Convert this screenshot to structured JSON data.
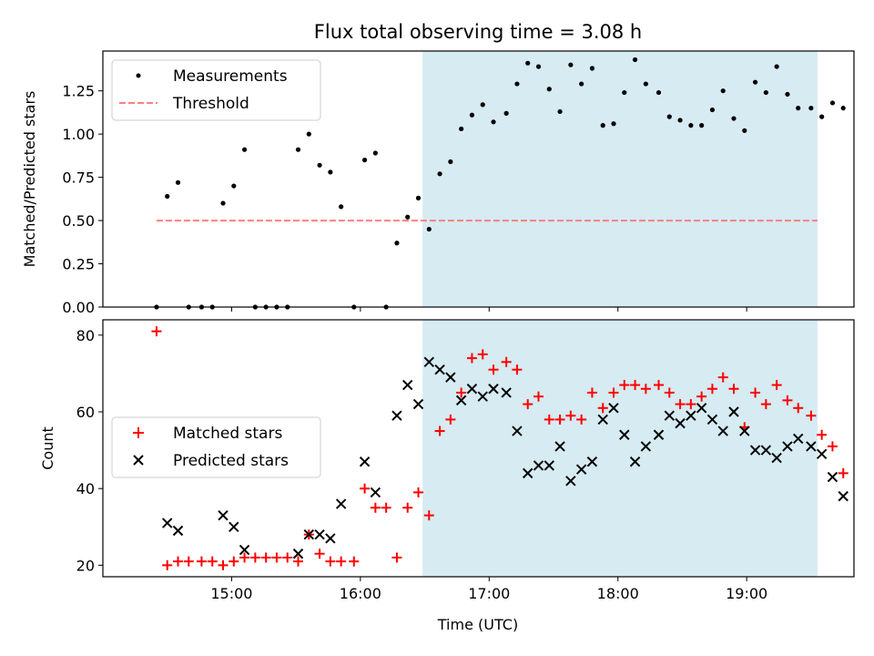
{
  "colors": {
    "shade": "#add8e6",
    "threshold": "#ff7f7f",
    "measurement": "#000000",
    "matched": "#ff0000",
    "predicted": "#000000"
  },
  "chart_data": [
    {
      "type": "scatter",
      "title": "Flux total observing time = 3.08 h",
      "xlabel": "",
      "ylabel": "Matched/Predicted stars",
      "x_unit": "time of day (UTC, HH:MM)",
      "xlim": [
        "14:00",
        "19:50"
      ],
      "ylim": [
        0,
        1.48
      ],
      "yticks": [
        0.0,
        0.25,
        0.5,
        0.75,
        1.0,
        1.25
      ],
      "ytick_labels": [
        "0.00",
        "0.25",
        "0.50",
        "0.75",
        "1.00",
        "1.25"
      ],
      "xtick_labels_shown": false,
      "shaded_span": [
        "16:29",
        "19:33"
      ],
      "legend": {
        "placement": "upper-left",
        "entries": [
          "Measurements",
          "Threshold"
        ]
      },
      "threshold": {
        "name": "Threshold",
        "y": 0.5,
        "x_range": [
          "14:25",
          "19:33"
        ]
      },
      "series": [
        {
          "name": "Measurements",
          "points": [
            [
              "14:25",
              0.0
            ],
            [
              "14:30",
              0.64
            ],
            [
              "14:35",
              0.72
            ],
            [
              "14:40",
              0.0
            ],
            [
              "14:46",
              0.0
            ],
            [
              "14:51",
              0.0
            ],
            [
              "14:56",
              0.6
            ],
            [
              "15:01",
              0.7
            ],
            [
              "15:06",
              0.91
            ],
            [
              "15:11",
              0.0
            ],
            [
              "15:16",
              0.0
            ],
            [
              "15:21",
              0.0
            ],
            [
              "15:26",
              0.0
            ],
            [
              "15:31",
              0.91
            ],
            [
              "15:36",
              1.0
            ],
            [
              "15:41",
              0.82
            ],
            [
              "15:46",
              0.78
            ],
            [
              "15:51",
              0.58
            ],
            [
              "15:57",
              0.0
            ],
            [
              "16:02",
              0.85
            ],
            [
              "16:07",
              0.89
            ],
            [
              "16:12",
              0.0
            ],
            [
              "16:17",
              0.37
            ],
            [
              "16:22",
              0.52
            ],
            [
              "16:27",
              0.63
            ],
            [
              "16:32",
              0.45
            ],
            [
              "16:37",
              0.77
            ],
            [
              "16:42",
              0.84
            ],
            [
              "16:47",
              1.03
            ],
            [
              "16:52",
              1.11
            ],
            [
              "16:57",
              1.17
            ],
            [
              "17:02",
              1.07
            ],
            [
              "17:08",
              1.12
            ],
            [
              "17:13",
              1.29
            ],
            [
              "17:18",
              1.41
            ],
            [
              "17:23",
              1.39
            ],
            [
              "17:28",
              1.26
            ],
            [
              "17:33",
              1.13
            ],
            [
              "17:38",
              1.4
            ],
            [
              "17:43",
              1.29
            ],
            [
              "17:48",
              1.38
            ],
            [
              "17:53",
              1.05
            ],
            [
              "17:58",
              1.06
            ],
            [
              "18:03",
              1.24
            ],
            [
              "18:08",
              1.43
            ],
            [
              "18:13",
              1.29
            ],
            [
              "18:19",
              1.24
            ],
            [
              "18:24",
              1.1
            ],
            [
              "18:29",
              1.08
            ],
            [
              "18:34",
              1.05
            ],
            [
              "18:39",
              1.05
            ],
            [
              "18:44",
              1.14
            ],
            [
              "18:49",
              1.25
            ],
            [
              "18:54",
              1.09
            ],
            [
              "18:59",
              1.02
            ],
            [
              "19:04",
              1.3
            ],
            [
              "19:09",
              1.24
            ],
            [
              "19:14",
              1.39
            ],
            [
              "19:19",
              1.23
            ],
            [
              "19:24",
              1.15
            ],
            [
              "19:30",
              1.15
            ],
            [
              "19:35",
              1.1
            ],
            [
              "19:40",
              1.18
            ],
            [
              "19:45",
              1.15
            ]
          ]
        }
      ]
    },
    {
      "type": "scatter",
      "title": "",
      "xlabel": "Time (UTC)",
      "ylabel": "Count",
      "x_unit": "time of day (UTC, HH:MM)",
      "xlim": [
        "14:00",
        "19:50"
      ],
      "ylim": [
        17,
        84
      ],
      "yticks": [
        20,
        40,
        60,
        80
      ],
      "ytick_labels": [
        "20",
        "40",
        "60",
        "80"
      ],
      "xticks": [
        "15:00",
        "16:00",
        "17:00",
        "18:00",
        "19:00"
      ],
      "xtick_labels": [
        "15:00",
        "16:00",
        "17:00",
        "18:00",
        "19:00"
      ],
      "shaded_span": [
        "16:29",
        "19:33"
      ],
      "legend": {
        "placement": "center-left",
        "entries": [
          "Matched stars",
          "Predicted stars"
        ]
      },
      "series": [
        {
          "name": "Matched stars",
          "marker": "+",
          "points": [
            [
              "14:25",
              81
            ],
            [
              "14:30",
              20
            ],
            [
              "14:35",
              21
            ],
            [
              "14:40",
              21
            ],
            [
              "14:46",
              21
            ],
            [
              "14:51",
              21
            ],
            [
              "14:56",
              20
            ],
            [
              "15:01",
              21
            ],
            [
              "15:06",
              22
            ],
            [
              "15:11",
              22
            ],
            [
              "15:16",
              22
            ],
            [
              "15:21",
              22
            ],
            [
              "15:26",
              22
            ],
            [
              "15:31",
              21
            ],
            [
              "15:36",
              28
            ],
            [
              "15:41",
              23
            ],
            [
              "15:46",
              21
            ],
            [
              "15:51",
              21
            ],
            [
              "15:57",
              21
            ],
            [
              "16:02",
              40
            ],
            [
              "16:07",
              35
            ],
            [
              "16:12",
              35
            ],
            [
              "16:17",
              22
            ],
            [
              "16:22",
              35
            ],
            [
              "16:27",
              39
            ],
            [
              "16:32",
              33
            ],
            [
              "16:37",
              55
            ],
            [
              "16:42",
              58
            ],
            [
              "16:47",
              65
            ],
            [
              "16:52",
              74
            ],
            [
              "16:57",
              75
            ],
            [
              "17:02",
              71
            ],
            [
              "17:08",
              73
            ],
            [
              "17:13",
              71
            ],
            [
              "17:18",
              62
            ],
            [
              "17:23",
              64
            ],
            [
              "17:28",
              58
            ],
            [
              "17:33",
              58
            ],
            [
              "17:38",
              59
            ],
            [
              "17:43",
              58
            ],
            [
              "17:48",
              65
            ],
            [
              "17:53",
              61
            ],
            [
              "17:58",
              65
            ],
            [
              "18:03",
              67
            ],
            [
              "18:08",
              67
            ],
            [
              "18:13",
              66
            ],
            [
              "18:19",
              67
            ],
            [
              "18:24",
              65
            ],
            [
              "18:29",
              62
            ],
            [
              "18:34",
              62
            ],
            [
              "18:39",
              64
            ],
            [
              "18:44",
              66
            ],
            [
              "18:49",
              69
            ],
            [
              "18:54",
              66
            ],
            [
              "18:59",
              56
            ],
            [
              "19:04",
              65
            ],
            [
              "19:09",
              62
            ],
            [
              "19:14",
              67
            ],
            [
              "19:19",
              63
            ],
            [
              "19:24",
              61
            ],
            [
              "19:30",
              59
            ],
            [
              "19:35",
              54
            ],
            [
              "19:40",
              51
            ],
            [
              "19:45",
              44
            ]
          ]
        },
        {
          "name": "Predicted stars",
          "marker": "x",
          "points": [
            [
              "14:30",
              31
            ],
            [
              "14:35",
              29
            ],
            [
              "14:56",
              33
            ],
            [
              "15:01",
              30
            ],
            [
              "15:06",
              24
            ],
            [
              "15:31",
              23
            ],
            [
              "15:36",
              28
            ],
            [
              "15:41",
              28
            ],
            [
              "15:46",
              27
            ],
            [
              "15:51",
              36
            ],
            [
              "16:02",
              47
            ],
            [
              "16:07",
              39
            ],
            [
              "16:17",
              59
            ],
            [
              "16:22",
              67
            ],
            [
              "16:27",
              62
            ],
            [
              "16:32",
              73
            ],
            [
              "16:37",
              71
            ],
            [
              "16:42",
              69
            ],
            [
              "16:47",
              63
            ],
            [
              "16:52",
              66
            ],
            [
              "16:57",
              64
            ],
            [
              "17:02",
              66
            ],
            [
              "17:08",
              65
            ],
            [
              "17:13",
              55
            ],
            [
              "17:18",
              44
            ],
            [
              "17:23",
              46
            ],
            [
              "17:28",
              46
            ],
            [
              "17:33",
              51
            ],
            [
              "17:38",
              42
            ],
            [
              "17:43",
              45
            ],
            [
              "17:48",
              47
            ],
            [
              "17:53",
              58
            ],
            [
              "17:58",
              61
            ],
            [
              "18:03",
              54
            ],
            [
              "18:08",
              47
            ],
            [
              "18:13",
              51
            ],
            [
              "18:19",
              54
            ],
            [
              "18:24",
              59
            ],
            [
              "18:29",
              57
            ],
            [
              "18:34",
              59
            ],
            [
              "18:39",
              61
            ],
            [
              "18:44",
              58
            ],
            [
              "18:49",
              55
            ],
            [
              "18:54",
              60
            ],
            [
              "18:59",
              55
            ],
            [
              "19:04",
              50
            ],
            [
              "19:09",
              50
            ],
            [
              "19:14",
              48
            ],
            [
              "19:19",
              51
            ],
            [
              "19:24",
              53
            ],
            [
              "19:30",
              51
            ],
            [
              "19:35",
              49
            ],
            [
              "19:40",
              43
            ],
            [
              "19:45",
              38
            ]
          ]
        }
      ]
    }
  ]
}
